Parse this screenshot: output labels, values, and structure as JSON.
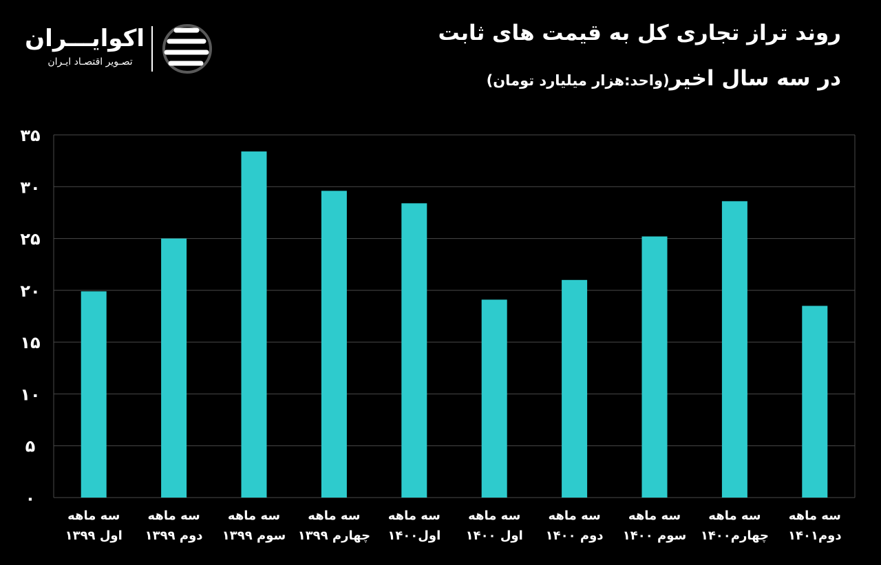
{
  "brand": {
    "name": "اکوایـــران",
    "tagline": "تصـویر اقتصـاد ایـران"
  },
  "header": {
    "title_line1": "روند تراز تجاری کل به قیمت های ثابت",
    "title_line2": "در سه سال اخیر",
    "unit": "(واحد:هزار میلیارد تومان)"
  },
  "colors": {
    "background": "#000000",
    "bar": "#2ecbcd",
    "grid": "#4a4a4a",
    "text": "#ffffff"
  },
  "chart_data": {
    "type": "bar",
    "title": "روند تراز تجاری کل به قیمت های ثابت در سه سال اخیر",
    "unit": "(واحد:هزار میلیارد تومان)",
    "ylim": [
      0,
      35
    ],
    "yticks": [
      0,
      5,
      10,
      15,
      20,
      25,
      30,
      35
    ],
    "ytick_labels": [
      "۰",
      "۵",
      "۱۰",
      "۱۵",
      "۲۰",
      "۲۵",
      "۳۰",
      "۳۵"
    ],
    "grid": true,
    "categories": [
      [
        "سه ماهه",
        "اول ۱۳۹۹"
      ],
      [
        "سه ماهه",
        "دوم ۱۳۹۹"
      ],
      [
        "سه ماهه",
        "سوم ۱۳۹۹"
      ],
      [
        "سه ماهه",
        "چهارم ۱۳۹۹"
      ],
      [
        "سه ماهه",
        "اول۱۴۰۰"
      ],
      [
        "سه ماهه",
        "اول ۱۴۰۰"
      ],
      [
        "سه ماهه",
        "دوم ۱۴۰۰"
      ],
      [
        "سه ماهه",
        "سوم ۱۴۰۰"
      ],
      [
        "سه ماهه",
        "چهارم۱۴۰۰"
      ],
      [
        "سه ماهه",
        "دوم۱۴۰۱"
      ]
    ],
    "values": [
      19.9,
      25.0,
      33.4,
      29.6,
      28.4,
      19.1,
      21.0,
      25.2,
      28.6,
      18.5
    ]
  }
}
